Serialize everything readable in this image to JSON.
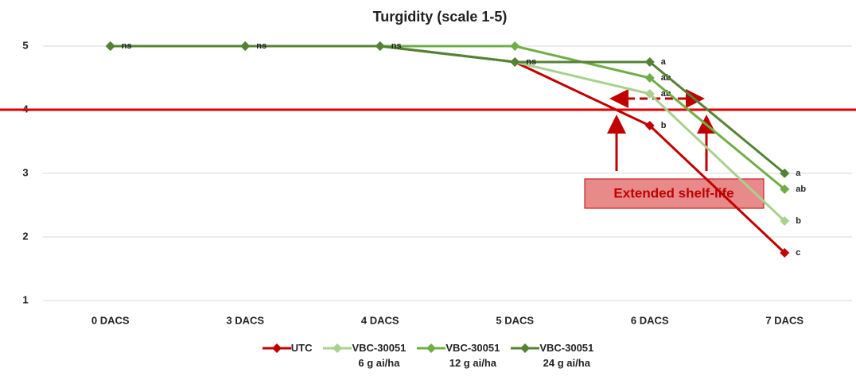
{
  "chart_data": {
    "type": "line",
    "title": "Turgidity (scale 1-5)",
    "categories": [
      "0 DACS",
      "3 DACS",
      "4 DACS",
      "5 DACS",
      "6 DACS",
      "7 DACS"
    ],
    "series": [
      {
        "name": "UTC",
        "color": "#c00000",
        "values": [
          5,
          5,
          5,
          4.75,
          3.75,
          1.75
        ],
        "point_labels": [
          null,
          null,
          null,
          null,
          "b",
          "c"
        ]
      },
      {
        "name": "VBC-30051\n6 g ai/ha",
        "color": "#a9d18e",
        "values": [
          5,
          5,
          5,
          4.75,
          4.25,
          2.25
        ],
        "point_labels": [
          null,
          null,
          null,
          null,
          "ab",
          "b"
        ]
      },
      {
        "name": "VBC-30051\n12 g ai/ha",
        "color": "#70ad47",
        "values": [
          5,
          5,
          5,
          5,
          4.5,
          2.75
        ],
        "point_labels": [
          null,
          null,
          null,
          null,
          "ab",
          "ab"
        ]
      },
      {
        "name": "VBC-30051\n24 g ai/ha",
        "color": "#548235",
        "values": [
          5,
          5,
          5,
          4.75,
          4.75,
          3
        ],
        "point_labels": [
          "ns",
          "ns",
          "ns",
          "ns",
          "a",
          "a"
        ]
      }
    ],
    "ylim": [
      1,
      5
    ],
    "yticks": [
      1,
      2,
      3,
      4,
      5
    ],
    "grid": true,
    "threshold": 4,
    "threshold_color": "#e00000",
    "annotation": "Extended shelf-life"
  }
}
